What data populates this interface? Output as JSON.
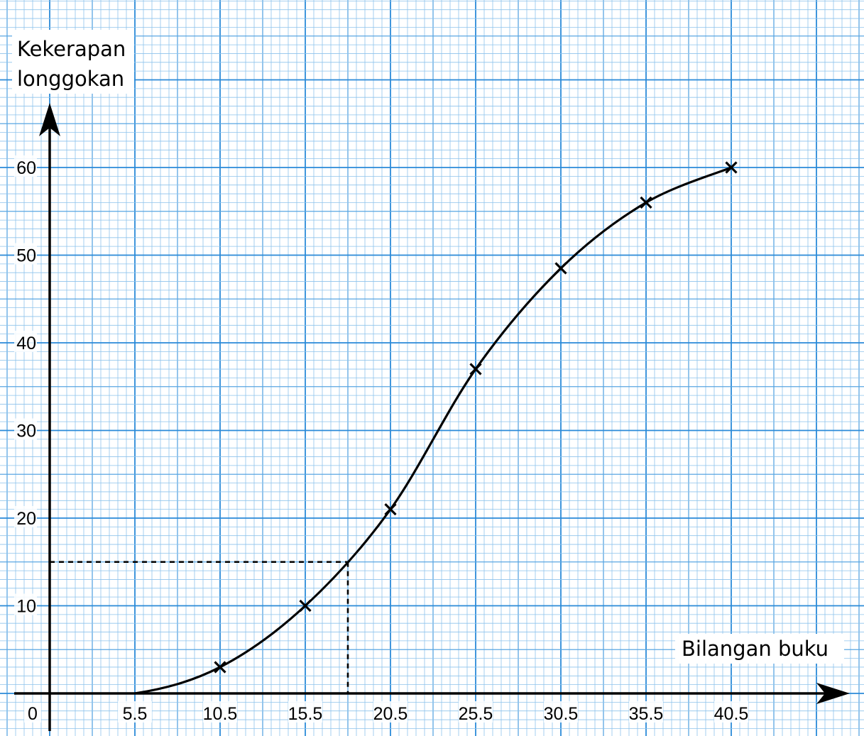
{
  "chart_data": {
    "type": "line",
    "title": "",
    "ylabel_lines": [
      "Kekerapan",
      "longgokan"
    ],
    "xlabel": "Bilangan buku",
    "origin_label": "0",
    "x_ticks": [
      "5.5",
      "10.5",
      "15.5",
      "20.5",
      "25.5",
      "30.5",
      "35.5",
      "40.5"
    ],
    "y_ticks": [
      "10",
      "20",
      "30",
      "40",
      "50",
      "60"
    ],
    "xlim": [
      0.5,
      45.5
    ],
    "ylim": [
      -4,
      66
    ],
    "grid": true,
    "series": [
      {
        "name": "",
        "x": [
          5.5,
          10.5,
          15.5,
          20.5,
          25.5,
          30.5,
          35.5,
          40.5
        ],
        "y": [
          0,
          3,
          10,
          21,
          37,
          48.5,
          56,
          60
        ],
        "markers": [
          false,
          true,
          true,
          true,
          true,
          true,
          true,
          true
        ]
      }
    ],
    "annotation_lines": [
      {
        "from": [
          0.5,
          15
        ],
        "to": [
          18,
          15
        ],
        "style": "dashed"
      },
      {
        "from": [
          18,
          15
        ],
        "to": [
          18,
          0
        ],
        "style": "dashed"
      }
    ],
    "colors": {
      "grid_major": "#2a8ad8",
      "grid_mid": "#5aa6e2",
      "grid_minor": "#8ec3ec",
      "curve": "#000000",
      "background": "#ffffff"
    }
  }
}
